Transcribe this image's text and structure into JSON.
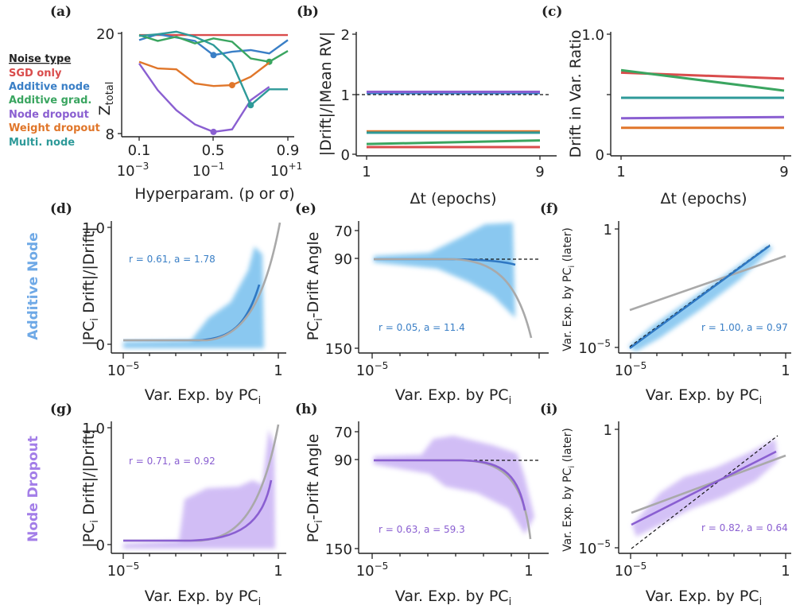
{
  "legend": {
    "title": "Noise type",
    "items": [
      {
        "label": "SGD only",
        "color": "#d94c4c"
      },
      {
        "label": "Additive node",
        "color": "#3a7fc6"
      },
      {
        "label": "Additive grad.",
        "color": "#3aa560"
      },
      {
        "label": "Node dropout",
        "color": "#8a5fd1"
      },
      {
        "label": "Weight dropout",
        "color": "#e0762a"
      },
      {
        "label": "Multi. node",
        "color": "#2e9a99"
      }
    ]
  },
  "row_labels": {
    "d": "Additive Node",
    "g": "Node Dropout"
  },
  "chart_data": [
    {
      "panel": "(a)",
      "type": "line",
      "xlabel": "Hyperparam. (p or σ)",
      "ylabel_main": "Z",
      "ylabel_sub": "total",
      "xticks": [
        "0.1",
        "0.5",
        "0.9"
      ],
      "xticks_sigma": [
        "10",
        "10",
        "10"
      ],
      "xticks_sigma_exp": [
        "−3",
        "−1",
        "+1"
      ],
      "yticks": [
        "8",
        "20"
      ],
      "x": [
        0.1,
        0.2,
        0.3,
        0.4,
        0.5,
        0.6,
        0.7,
        0.8,
        0.9
      ],
      "series": [
        {
          "name": "SGD only",
          "color": "#d94c4c",
          "values": [
            19.8,
            19.8,
            19.8,
            19.8,
            19.8,
            19.8,
            19.8,
            19.8,
            19.8
          ]
        },
        {
          "name": "Additive node",
          "color": "#3a7fc6",
          "values": [
            19.2,
            19.9,
            19.5,
            19.1,
            17.4,
            17.8,
            18.0,
            17.6,
            19.2
          ],
          "marker_x": 0.5
        },
        {
          "name": "Additive grad.",
          "color": "#3aa560",
          "values": [
            19.8,
            19.1,
            19.6,
            18.8,
            19.4,
            19.0,
            17.0,
            16.6,
            17.9
          ],
          "marker_x": 0.8
        },
        {
          "name": "Node dropout",
          "color": "#8a5fd1",
          "values": [
            16.4,
            13.2,
            10.8,
            9.1,
            8.2,
            8.5,
            12.0,
            13.6,
            null
          ],
          "marker_x": 0.5
        },
        {
          "name": "Weight dropout",
          "color": "#e0762a",
          "values": [
            16.6,
            15.8,
            15.7,
            14.0,
            13.7,
            13.8,
            14.8,
            16.5,
            null
          ],
          "marker_x": 0.6
        },
        {
          "name": "Multi. node",
          "color": "#2e9a99",
          "values": [
            19.7,
            19.9,
            20.2,
            19.6,
            18.6,
            16.5,
            11.4,
            13.3,
            13.3
          ],
          "marker_x": 0.7
        }
      ]
    },
    {
      "panel": "(b)",
      "type": "line",
      "xlabel": "Δt (epochs)",
      "ylabel": "|Drift|/|Mean RV|",
      "xlim": [
        1,
        9
      ],
      "ylim": [
        0,
        2
      ],
      "xticks": [
        "1",
        "9"
      ],
      "yticks": [
        "0",
        "1",
        "2"
      ],
      "reference_y": 1,
      "series": [
        {
          "name": "SGD only",
          "color": "#d94c4c",
          "values": [
            0.12,
            0.12
          ]
        },
        {
          "name": "Additive node",
          "color": "#3a7fc6",
          "values": [
            1.02,
            1.02
          ]
        },
        {
          "name": "Additive grad.",
          "color": "#3aa560",
          "values": [
            0.17,
            0.23
          ]
        },
        {
          "name": "Node dropout",
          "color": "#8a5fd1",
          "values": [
            1.04,
            1.04
          ]
        },
        {
          "name": "Weight dropout",
          "color": "#e0762a",
          "values": [
            0.38,
            0.38
          ]
        },
        {
          "name": "Multi. node",
          "color": "#2e9a99",
          "values": [
            0.36,
            0.36
          ]
        }
      ]
    },
    {
      "panel": "(c)",
      "type": "line",
      "xlabel": "Δt (epochs)",
      "ylabel": "Drift in Var. Ratio",
      "xlim": [
        1,
        9
      ],
      "ylim": [
        0,
        1
      ],
      "xticks": [
        "1",
        "9"
      ],
      "yticks": [
        "0",
        "0.5",
        "1.0"
      ],
      "series": [
        {
          "name": "SGD only",
          "color": "#d94c4c",
          "values": [
            0.68,
            0.63
          ]
        },
        {
          "name": "Additive node",
          "color": "#3a7fc6",
          "values": [
            0.47,
            0.47
          ]
        },
        {
          "name": "Additive grad.",
          "color": "#3aa560",
          "values": [
            0.7,
            0.53
          ]
        },
        {
          "name": "Node dropout",
          "color": "#8a5fd1",
          "values": [
            0.3,
            0.31
          ]
        },
        {
          "name": "Weight dropout",
          "color": "#e0762a",
          "values": [
            0.22,
            0.22
          ]
        },
        {
          "name": "Multi. node",
          "color": "#2e9a99",
          "values": [
            0.47,
            0.47
          ]
        }
      ]
    },
    {
      "panel": "(d)",
      "type": "scatter",
      "xlabel": "Var. Exp. by PC",
      "xlabel_sub": "i",
      "ylabel": "|PC",
      "ylabel_sub": "i",
      "ylabel_rest": " Drift|/|Drift|",
      "xticks_base": "10",
      "xticks_exp": "−5",
      "xticks_end": "1",
      "yticks": [
        "0",
        "1.0"
      ],
      "annotation": "r = 0.61, a = 1.78",
      "color": "#3a7fc6",
      "cloud": "#7ec3ef"
    },
    {
      "panel": "(e)",
      "type": "scatter",
      "xlabel": "Var. Exp. by PC",
      "xlabel_sub": "i",
      "ylabel": "PC",
      "ylabel_sub": "i",
      "ylabel_rest": "-Drift Angle",
      "xticks_base": "10",
      "xticks_exp": "−5",
      "xticks_end": "1",
      "yticks": [
        "70",
        "90",
        "150"
      ],
      "reference_y": 90,
      "annotation": "r = 0.05, a = 11.4",
      "color": "#3a7fc6",
      "cloud": "#7ec3ef"
    },
    {
      "panel": "(f)",
      "type": "scatter",
      "xlabel": "Var. Exp. by PC",
      "xlabel_sub": "i",
      "ylabel": "Var. Exp. by PC",
      "ylabel_sub": "i",
      "ylabel_rest": " (later)",
      "xticks_base": "10",
      "xticks_exp": "−5",
      "xticks_end": "1",
      "yticks_base": "10",
      "yticks_exp": "−5",
      "yticks_end": "1",
      "annotation": "r = 1.00, a = 0.97",
      "color": "#3a7fc6",
      "cloud": "#7ec3ef"
    },
    {
      "panel": "(g)",
      "type": "scatter",
      "xlabel": "Var. Exp. by PC",
      "xlabel_sub": "i",
      "ylabel": "|PC",
      "ylabel_sub": "i",
      "ylabel_rest": " Drift|/|Drift|",
      "xticks_base": "10",
      "xticks_exp": "−5",
      "xticks_end": "1",
      "yticks": [
        "0",
        "1.0"
      ],
      "annotation": "r = 0.71, a = 0.92",
      "color": "#8a5fd1",
      "cloud": "#c9b2f4"
    },
    {
      "panel": "(h)",
      "type": "scatter",
      "xlabel": "Var. Exp. by PC",
      "xlabel_sub": "i",
      "ylabel": "PC",
      "ylabel_sub": "i",
      "ylabel_rest": "-Drift Angle",
      "xticks_base": "10",
      "xticks_exp": "−5",
      "xticks_end": "1",
      "yticks": [
        "70",
        "90",
        "150"
      ],
      "reference_y": 90,
      "annotation": "r = 0.63, a = 59.3",
      "color": "#8a5fd1",
      "cloud": "#c9b2f4"
    },
    {
      "panel": "(i)",
      "type": "scatter",
      "xlabel": "Var. Exp. by PC",
      "xlabel_sub": "i",
      "ylabel": "Var. Exp. by PC",
      "ylabel_sub": "i",
      "ylabel_rest": " (later)",
      "xticks_base": "10",
      "xticks_exp": "−5",
      "xticks_end": "1",
      "yticks_base": "10",
      "yticks_exp": "−5",
      "yticks_end": "1",
      "annotation": "r = 0.82, a = 0.64",
      "color": "#8a5fd1",
      "cloud": "#c9b2f4"
    }
  ]
}
